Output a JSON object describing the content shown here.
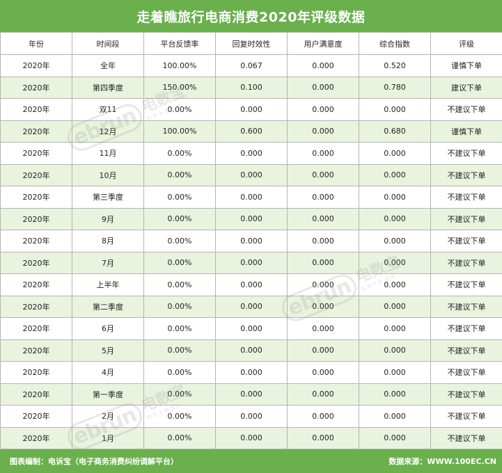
{
  "title": "走着瞧旅行电商消费2020年评级数据",
  "columns": [
    "年份",
    "时间段",
    "平台反馈率",
    "回复时效性",
    "用户满意度",
    "综合指数",
    "评级"
  ],
  "rows": [
    [
      "2020年",
      "全年",
      "100.00%",
      "0.067",
      "0.000",
      "0.520",
      "谨慎下单"
    ],
    [
      "2020年",
      "第四季度",
      "150.00%",
      "0.100",
      "0.000",
      "0.780",
      "建议下单"
    ],
    [
      "2020年",
      "双11",
      "0.00%",
      "0.000",
      "0.000",
      "0.000",
      "不建议下单"
    ],
    [
      "2020年",
      "12月",
      "100.00%",
      "0.600",
      "0.000",
      "0.680",
      "谨慎下单"
    ],
    [
      "2020年",
      "11月",
      "0.00%",
      "0.000",
      "0.000",
      "0.000",
      "不建议下单"
    ],
    [
      "2020年",
      "10月",
      "0.00%",
      "0.000",
      "0.000",
      "0.000",
      "不建议下单"
    ],
    [
      "2020年",
      "第三季度",
      "0.00%",
      "0.000",
      "0.000",
      "0.000",
      "不建议下单"
    ],
    [
      "2020年",
      "9月",
      "0.00%",
      "0.000",
      "0.000",
      "0.000",
      "不建议下单"
    ],
    [
      "2020年",
      "8月",
      "0.00%",
      "0.000",
      "0.000",
      "0.000",
      "不建议下单"
    ],
    [
      "2020年",
      "7月",
      "0.00%",
      "0.000",
      "0.000",
      "0.000",
      "不建议下单"
    ],
    [
      "2020年",
      "上半年",
      "0.00%",
      "0.000",
      "0.000",
      "0.000",
      "不建议下单"
    ],
    [
      "2020年",
      "第二季度",
      "0.00%",
      "0.000",
      "0.000",
      "0.000",
      "不建议下单"
    ],
    [
      "2020年",
      "6月",
      "0.00%",
      "0.000",
      "0.000",
      "0.000",
      "不建议下单"
    ],
    [
      "2020年",
      "5月",
      "0.00%",
      "0.000",
      "0.000",
      "0.000",
      "不建议下单"
    ],
    [
      "2020年",
      "4月",
      "0.00%",
      "0.000",
      "0.000",
      "0.000",
      "不建议下单"
    ],
    [
      "2020年",
      "第一季度",
      "0.00%",
      "0.000",
      "0.000",
      "0.000",
      "不建议下单"
    ],
    [
      "2020年",
      "2月",
      "0.00%",
      "0.000",
      "0.000",
      "0.000",
      "不建议下单"
    ],
    [
      "2020年",
      "1月",
      "0.00%",
      "0.000",
      "0.000",
      "0.000",
      "不建议下单"
    ]
  ],
  "footer": {
    "left": "图表编制：电诉宝（电子商务消费纠纷调解平台）",
    "right": "数据来源：WWW.100EC.CN"
  },
  "watermark": {
    "logo": "ebrun",
    "brand": "电数宝",
    "tagline": "电商大数据库"
  },
  "colors": {
    "header_green": "#6ab04c",
    "stripe": "#e9f3de",
    "grid": "#b4b4b4"
  }
}
